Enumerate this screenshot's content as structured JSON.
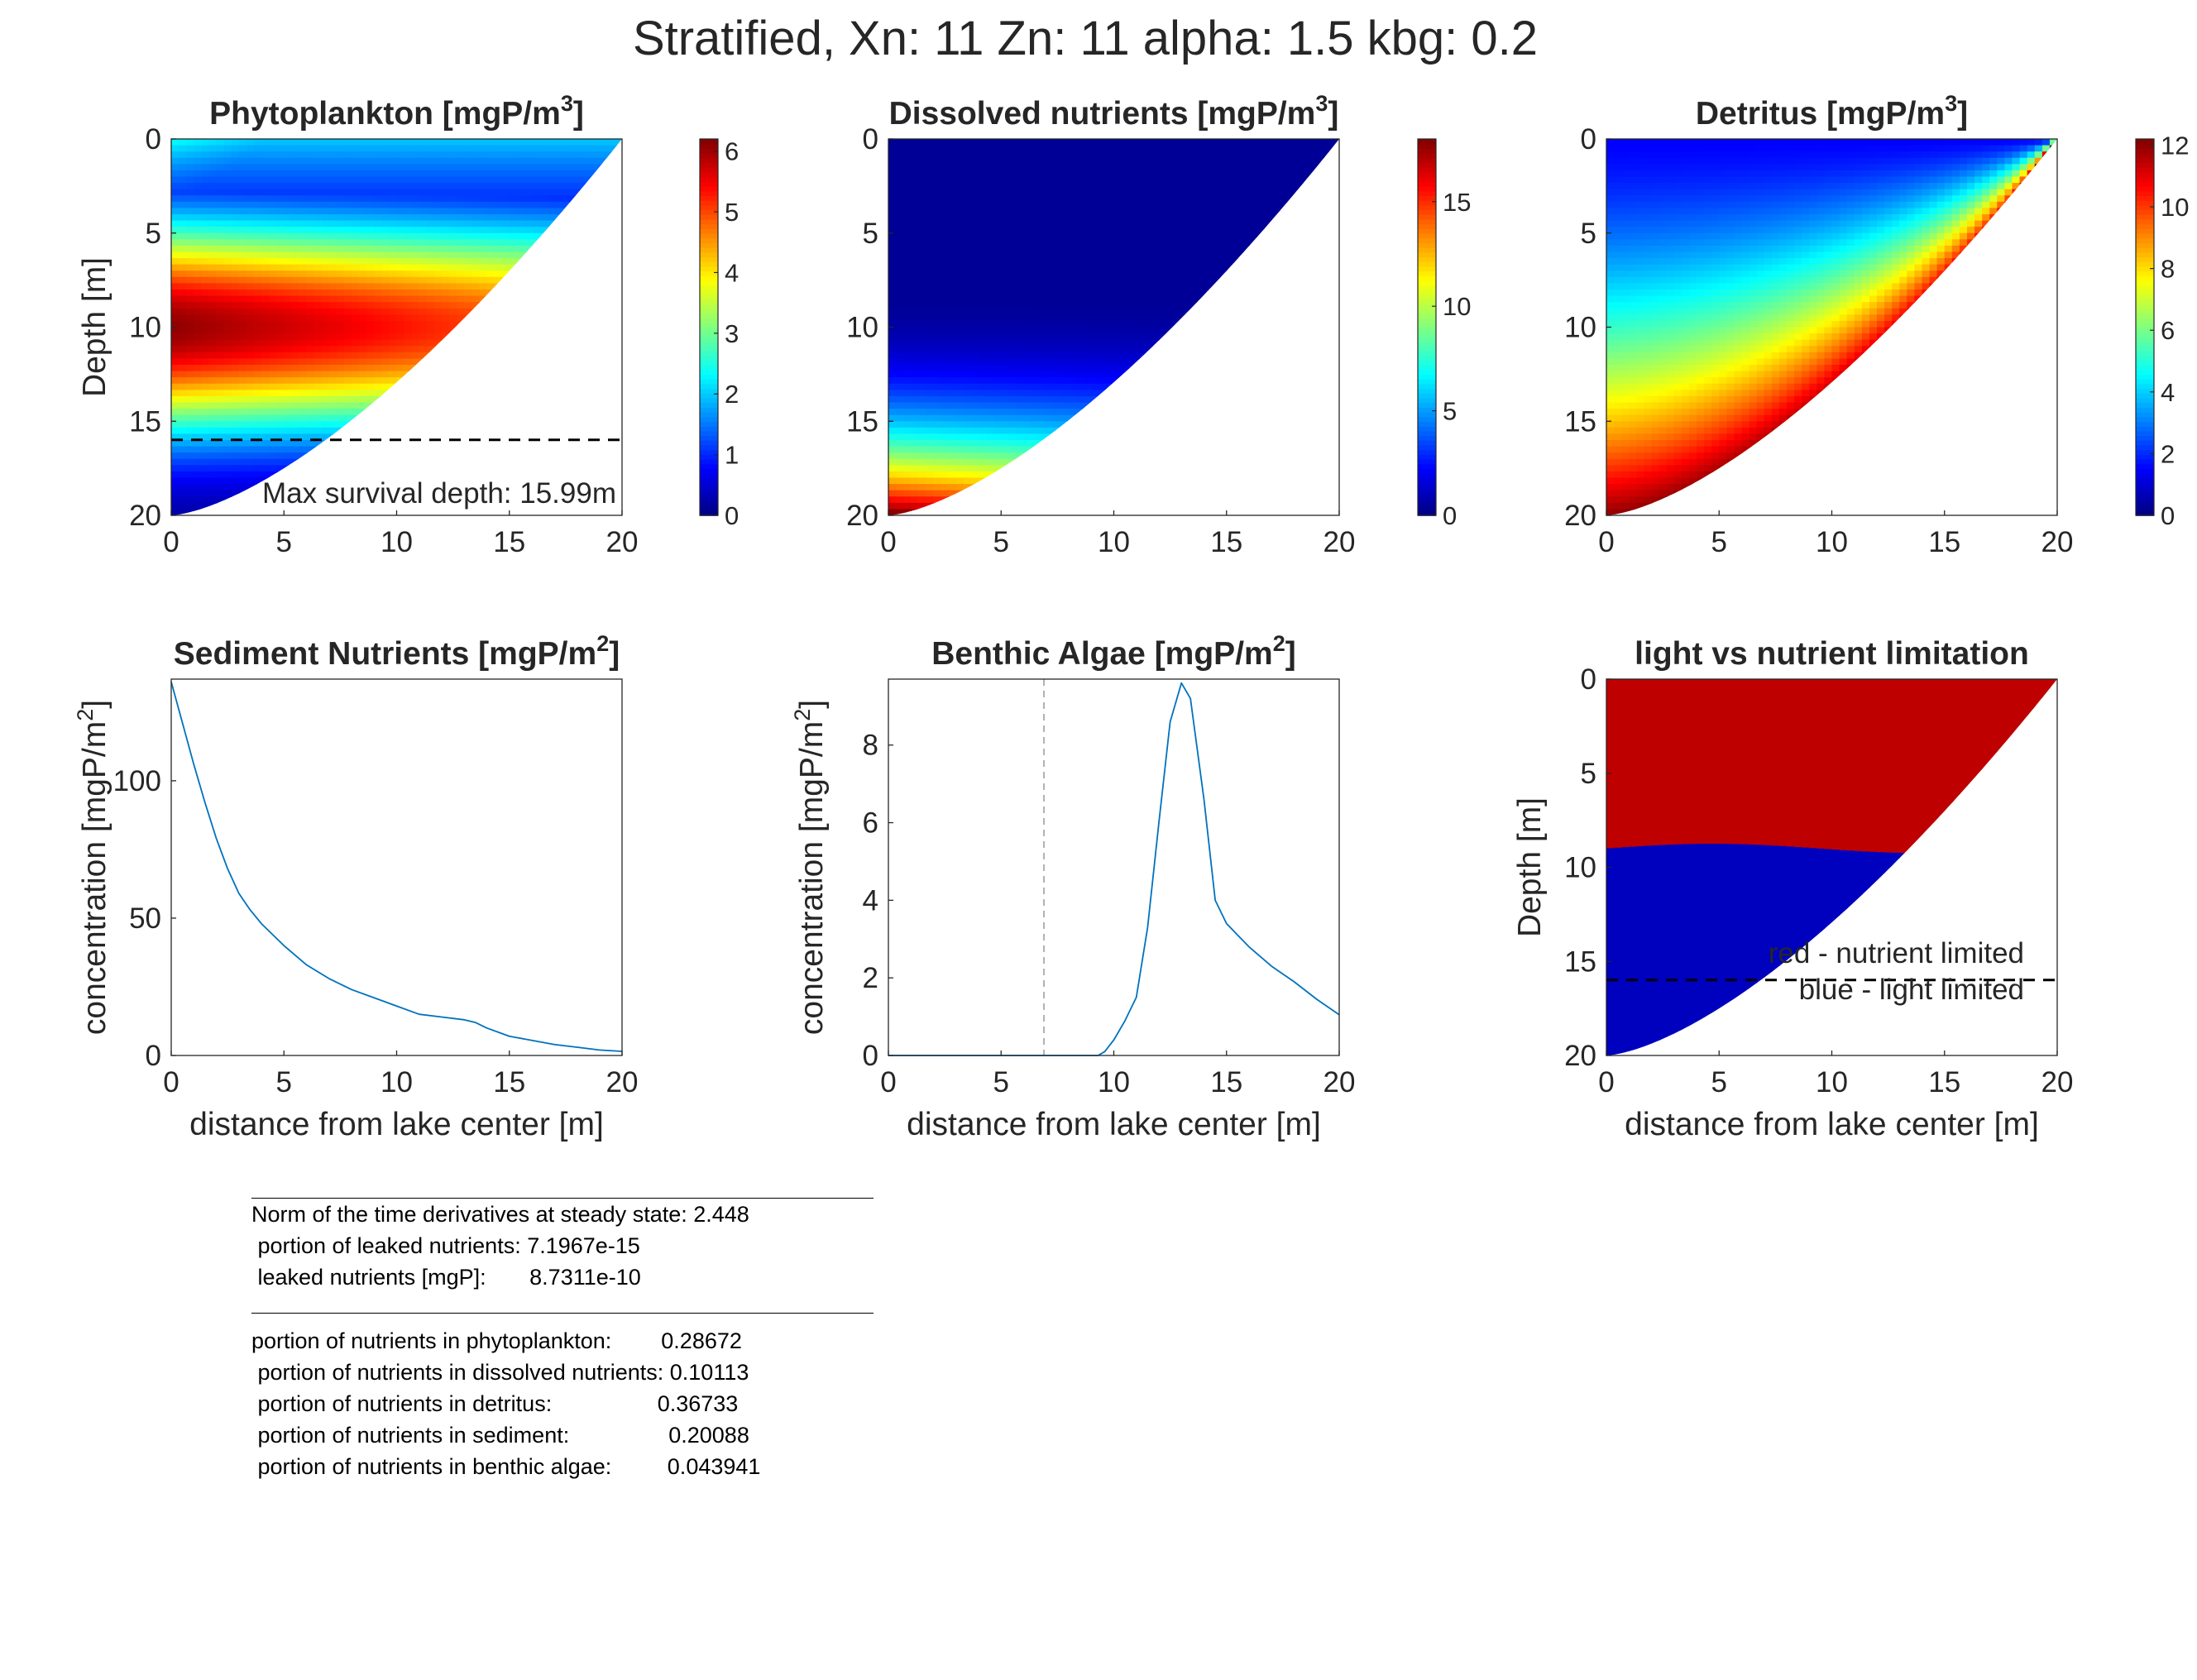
{
  "figure_title": "Stratified, Xn: 11  Zn: 11  alpha: 1.5  kbg: 0.2",
  "chart_data": [
    {
      "id": "phyto",
      "type": "heatmap",
      "title": "Phytoplankton [mgP/m",
      "title_sup": "3",
      "title_end": "]",
      "xlabel": "",
      "ylabel": "Depth [m]",
      "xlim": [
        0,
        20
      ],
      "ylim": [
        0,
        20
      ],
      "y_reversed": true,
      "xticks": [
        "0",
        "5",
        "10",
        "15",
        "20"
      ],
      "yticks": [
        "0",
        "5",
        "10",
        "15",
        "20"
      ],
      "colorbar": {
        "ticks": [
          "0",
          "1",
          "2",
          "3",
          "4",
          "5",
          "6"
        ],
        "range": [
          0,
          6.2
        ]
      },
      "max_depth_line": 15.99,
      "annotation": "Max survival depth: 15.99m"
    },
    {
      "id": "dissolved",
      "type": "heatmap",
      "title": "Dissolved nutrients [mgP/m",
      "title_sup": "3",
      "title_end": "]",
      "xlabel": "",
      "ylabel": "",
      "xlim": [
        0,
        20
      ],
      "ylim": [
        0,
        20
      ],
      "y_reversed": true,
      "xticks": [
        "0",
        "5",
        "10",
        "15",
        "20"
      ],
      "yticks": [
        "0",
        "5",
        "10",
        "15",
        "20"
      ],
      "colorbar": {
        "ticks": [
          "0",
          "5",
          "10",
          "15"
        ],
        "range": [
          0,
          18
        ]
      }
    },
    {
      "id": "detritus",
      "type": "heatmap",
      "title": "Detritus [mgP/m",
      "title_sup": "3",
      "title_end": "]",
      "xlabel": "",
      "ylabel": "",
      "xlim": [
        0,
        20
      ],
      "ylim": [
        0,
        20
      ],
      "y_reversed": true,
      "xticks": [
        "0",
        "5",
        "10",
        "15",
        "20"
      ],
      "yticks": [
        "0",
        "5",
        "10",
        "15",
        "20"
      ],
      "colorbar": {
        "ticks": [
          "0",
          "2",
          "4",
          "6",
          "8",
          "10",
          "12"
        ],
        "range": [
          0,
          12.2
        ]
      }
    },
    {
      "id": "sediment",
      "type": "line",
      "title": "Sediment Nutrients [mgP/m",
      "title_sup": "2",
      "title_end": "]",
      "xlabel": "distance from lake center [m]",
      "ylabel": "concentration [mgP/m",
      "ylabel_sup": "2",
      "ylabel_end": "]",
      "xlim": [
        0,
        20
      ],
      "ylim": [
        0,
        137
      ],
      "xticks": [
        "0",
        "5",
        "10",
        "15",
        "20"
      ],
      "yticks": [
        "0",
        "50",
        "100"
      ],
      "series": [
        {
          "color": "#0072BD",
          "x": [
            0,
            0.5,
            1,
            1.5,
            2,
            2.5,
            3,
            3.5,
            4,
            5,
            6,
            7,
            8,
            9,
            10,
            11,
            12,
            13,
            13.5,
            14,
            15,
            16,
            17,
            18,
            19,
            20
          ],
          "y": [
            136,
            121,
            106,
            92,
            79,
            68,
            59,
            53,
            48,
            40,
            33,
            28,
            24,
            21,
            18,
            15,
            14,
            13,
            12,
            10,
            7,
            5.5,
            4,
            3,
            2,
            1.5
          ]
        }
      ]
    },
    {
      "id": "benthic",
      "type": "line",
      "title": "Benthic Algae [mgP/m",
      "title_sup": "2",
      "title_end": "]",
      "xlabel": "distance from lake center [m]",
      "ylabel": "concentration [mgP/m",
      "ylabel_sup": "2",
      "ylabel_end": "]",
      "xlim": [
        0,
        20
      ],
      "ylim": [
        0,
        9.7
      ],
      "xticks": [
        "0",
        "5",
        "10",
        "15",
        "20"
      ],
      "yticks": [
        "0",
        "2",
        "4",
        "6",
        "8"
      ],
      "vline": 6.9,
      "series": [
        {
          "color": "#0072BD",
          "x": [
            0,
            9.3,
            9.6,
            10,
            10.5,
            11,
            11.5,
            12,
            12.5,
            13,
            13.4,
            14,
            14.5,
            15,
            15.5,
            16,
            16.5,
            17,
            18,
            19,
            20
          ],
          "y": [
            0,
            0,
            0.1,
            0.4,
            0.9,
            1.5,
            3.3,
            6.0,
            8.6,
            9.6,
            9.2,
            6.6,
            4.0,
            3.4,
            3.1,
            2.8,
            2.55,
            2.3,
            1.9,
            1.45,
            1.05
          ]
        }
      ]
    },
    {
      "id": "limitation",
      "type": "heatmap",
      "title": "light vs nutrient limitation",
      "xlabel": "distance from lake center [m]",
      "ylabel": "Depth [m]",
      "xlim": [
        0,
        20
      ],
      "ylim": [
        0,
        20
      ],
      "y_reversed": true,
      "xticks": [
        "0",
        "5",
        "10",
        "15",
        "20"
      ],
      "yticks": [
        "0",
        "5",
        "10",
        "15",
        "20"
      ],
      "colors": {
        "nutrient_limited": "#BF0000",
        "light_limited": "#0000BF"
      },
      "boundary_depth": 9,
      "max_depth_line": 15.99,
      "legend": [
        "red - nutrient limited",
        "blue - light limited"
      ]
    }
  ],
  "stats": {
    "lines1": [
      "Norm of the time derivatives at steady state: 2.448",
      " portion of leaked nutrients: 7.1967e-15",
      " leaked nutrients [mgP]:       8.7311e-10"
    ],
    "lines2": [
      "portion of nutrients in phytoplankton:        0.28672",
      " portion of nutrients in dissolved nutrients: 0.10113",
      " portion of nutrients in detritus:                 0.36733",
      " portion of nutrients in sediment:                0.20088",
      " portion of nutrients in benthic algae:         0.043941"
    ]
  }
}
